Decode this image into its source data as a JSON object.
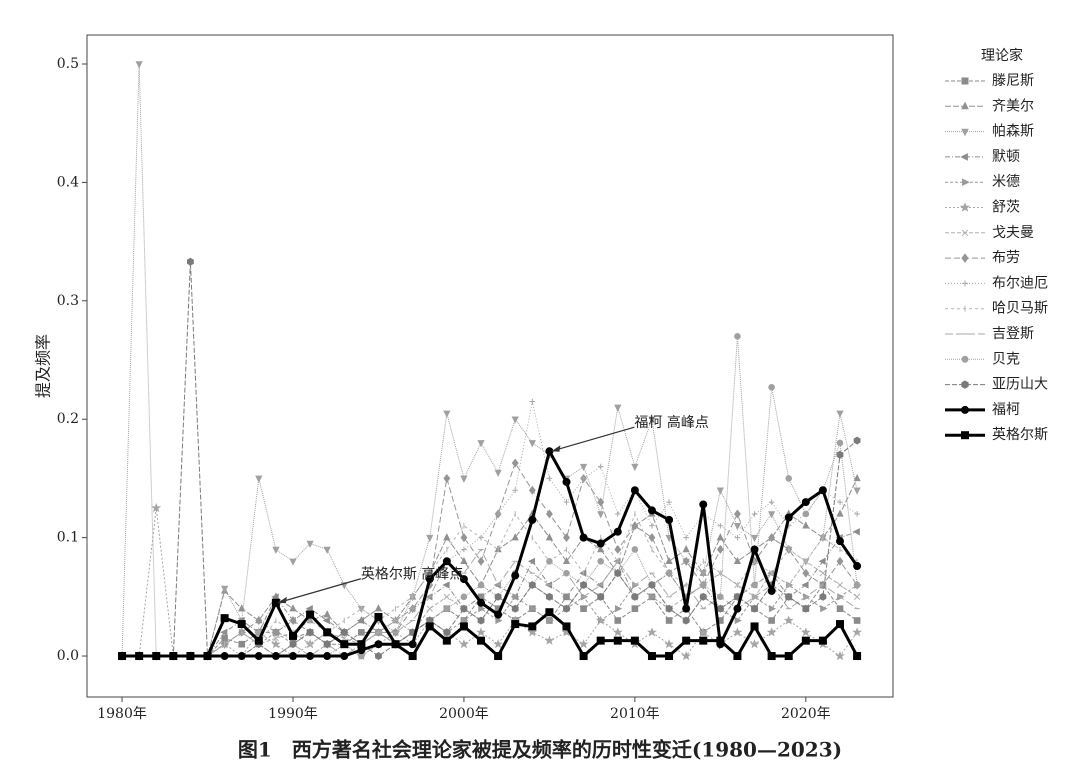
{
  "chart_data": {
    "type": "line",
    "caption": "图1　西方著名社会理论家被提及频率的历时性变迁(1980—2023)",
    "ylabel": "提及频率",
    "legend_title": "理论家",
    "legend": "outside right",
    "x": [
      1980,
      1981,
      1982,
      1983,
      1984,
      1985,
      1986,
      1987,
      1988,
      1989,
      1990,
      1991,
      1992,
      1993,
      1994,
      1995,
      1996,
      1997,
      1998,
      1999,
      2000,
      2001,
      2002,
      2003,
      2004,
      2005,
      2006,
      2007,
      2008,
      2009,
      2010,
      2011,
      2012,
      2013,
      2014,
      2015,
      2016,
      2017,
      2018,
      2019,
      2020,
      2021,
      2022,
      2023
    ],
    "xlim": [
      1977.95,
      2025.1
    ],
    "xticks": [
      {
        "value": 1980,
        "label": "1980年"
      },
      {
        "value": 1990,
        "label": "1990年"
      },
      {
        "value": 2000,
        "label": "2000年"
      },
      {
        "value": 2010,
        "label": "2010年"
      },
      {
        "value": 2020,
        "label": "2020年"
      }
    ],
    "ylim": [
      -0.0346,
      0.5245
    ],
    "yticks": [
      {
        "value": 0,
        "label": "0.0"
      },
      0.1,
      0.2,
      0.3,
      0.4,
      0.5
    ],
    "annotations": [
      {
        "text": "福柯 高峰点",
        "x": 2005,
        "y": 0.173
      },
      {
        "text": "英格尔斯 高峰点",
        "x": 1989,
        "y": 0.045
      }
    ],
    "series": [
      {
        "name": "滕尼斯",
        "color": "#8a8a8a",
        "marker": "square",
        "dash": "4 2",
        "width": 1,
        "values": [
          0,
          0,
          0,
          0,
          0,
          0,
          0.015,
          0.01,
          0.02,
          0.02,
          0.015,
          0.02,
          0.01,
          0.01,
          0.02,
          0.02,
          0.01,
          0.02,
          0.03,
          0.04,
          0.03,
          0.05,
          0.04,
          0.03,
          0.04,
          0.03,
          0.05,
          0.04,
          0.05,
          0.03,
          0.04,
          0.05,
          0.03,
          0.04,
          0.02,
          0.03,
          0.05,
          0.04,
          0.03,
          0.05,
          0.04,
          0.06,
          0.04,
          0.03
        ]
      },
      {
        "name": "齐美尔",
        "color": "#909090",
        "marker": "triangle-up",
        "dash": "6 2",
        "width": 1,
        "values": [
          0,
          0,
          0,
          0,
          0,
          0,
          0.055,
          0.04,
          0.03,
          0.05,
          0.04,
          0.03,
          0.035,
          0.02,
          0.03,
          0.04,
          0.03,
          0.05,
          0.07,
          0.1,
          0.08,
          0.06,
          0.09,
          0.1,
          0.12,
          0.1,
          0.08,
          0.1,
          0.09,
          0.07,
          0.11,
          0.12,
          0.08,
          0.09,
          0.07,
          0.1,
          0.08,
          0.09,
          0.1,
          0.12,
          0.11,
          0.1,
          0.12,
          0.15
        ]
      },
      {
        "name": "帕森斯",
        "color": "#a0a0a0",
        "marker": "triangle-down",
        "dash": "1 1",
        "width": 1,
        "values": [
          0,
          0.5,
          0,
          0,
          0,
          0,
          0.057,
          0.03,
          0.15,
          0.09,
          0.08,
          0.095,
          0.09,
          0.06,
          0.04,
          0.03,
          0.02,
          0.05,
          0.1,
          0.205,
          0.15,
          0.18,
          0.155,
          0.2,
          0.18,
          0.17,
          0.15,
          0.16,
          0.12,
          0.21,
          0.16,
          0.2,
          0.1,
          0.08,
          0.07,
          0.14,
          0.11,
          0.1,
          0.12,
          0.09,
          0.08,
          0.1,
          0.205,
          0.14
        ]
      },
      {
        "name": "默顿",
        "color": "#8c8c8c",
        "marker": "triangle-left",
        "dash": "5 2 1 2",
        "width": 1,
        "values": [
          0,
          0,
          0,
          0,
          0,
          0,
          0.02,
          0.03,
          0.02,
          0.05,
          0.03,
          0.04,
          0.03,
          0.02,
          0.03,
          0.02,
          0.03,
          0.04,
          0.05,
          0.06,
          0.04,
          0.05,
          0.06,
          0.05,
          0.08,
          0.06,
          0.05,
          0.07,
          0.06,
          0.08,
          0.05,
          0.06,
          0.07,
          0.05,
          0.06,
          0.04,
          0.05,
          0.06,
          0.07,
          0.05,
          0.06,
          0.08,
          0.1,
          0.105
        ]
      },
      {
        "name": "米德",
        "color": "#999999",
        "marker": "triangle-right",
        "dash": "3 2",
        "width": 1,
        "values": [
          0,
          0,
          0,
          0,
          0,
          0,
          0.01,
          0.02,
          0.01,
          0.02,
          0.01,
          0.02,
          0.01,
          0.02,
          0.01,
          0.02,
          0.01,
          0.02,
          0.03,
          0.02,
          0.03,
          0.04,
          0.03,
          0.05,
          0.04,
          0.03,
          0.04,
          0.05,
          0.03,
          0.04,
          0.06,
          0.05,
          0.04,
          0.03,
          0.05,
          0.04,
          0.03,
          0.05,
          0.04,
          0.06,
          0.05,
          0.04,
          0.05,
          0.06
        ]
      },
      {
        "name": "舒茨",
        "color": "#a5a5a5",
        "marker": "star",
        "dash": "2 2",
        "width": 1,
        "values": [
          0,
          0,
          0.125,
          0,
          0,
          0,
          0.01,
          0,
          0.02,
          0.01,
          0,
          0.01,
          0.02,
          0.01,
          0,
          0.01,
          0.02,
          0.01,
          0.03,
          0.02,
          0.01,
          0.02,
          0.01,
          0.03,
          0.02,
          0.013,
          0.02,
          0.01,
          0.03,
          0.02,
          0.01,
          0.02,
          0.01,
          0,
          0.02,
          0.01,
          0.02,
          0.01,
          0.02,
          0.03,
          0.02,
          0.01,
          0,
          0.02
        ]
      },
      {
        "name": "戈夫曼",
        "color": "#b0b0b0",
        "marker": "cross",
        "dash": "4 2",
        "width": 1,
        "values": [
          0,
          0,
          0,
          0,
          0,
          0,
          0.01,
          0.02,
          0.01,
          0.015,
          0.02,
          0.01,
          0.02,
          0.015,
          0.01,
          0.02,
          0.03,
          0.02,
          0.04,
          0.05,
          0.04,
          0.03,
          0.05,
          0.04,
          0.06,
          0.05,
          0.04,
          0.06,
          0.05,
          0.07,
          0.05,
          0.06,
          0.04,
          0.05,
          0.06,
          0.07,
          0.06,
          0.05,
          0.07,
          0.06,
          0.08,
          0.07,
          0.06,
          0.05
        ]
      },
      {
        "name": "布劳",
        "color": "#959595",
        "marker": "diamond",
        "dash": "6 3",
        "width": 1,
        "values": [
          0,
          0,
          0,
          0,
          0,
          0,
          0.01,
          0.02,
          0.03,
          0.02,
          0.03,
          0.02,
          0.01,
          0.02,
          0.01,
          0.02,
          0.02,
          0.04,
          0.06,
          0.15,
          0.1,
          0.08,
          0.12,
          0.163,
          0.14,
          0.12,
          0.1,
          0.15,
          0.13,
          0.09,
          0.11,
          0.1,
          0.07,
          0.08,
          0.06,
          0.09,
          0.12,
          0.08,
          0.1,
          0.09,
          0.07,
          0.06,
          0.08,
          0.06
        ]
      },
      {
        "name": "布尔迪厄",
        "color": "#a8a8a8",
        "marker": "plus",
        "dash": "1 2",
        "width": 1,
        "values": [
          0,
          0,
          0,
          0,
          0,
          0,
          0,
          0,
          0.01,
          0,
          0.01,
          0,
          0.01,
          0.02,
          0.01,
          0.02,
          0.03,
          0.04,
          0.06,
          0.08,
          0.09,
          0.1,
          0.12,
          0.14,
          0.215,
          0.15,
          0.13,
          0.15,
          0.16,
          0.12,
          0.14,
          0.11,
          0.13,
          0.1,
          0.12,
          0.11,
          0.1,
          0.12,
          0.13,
          0.11,
          0.12,
          0.14,
          0.13,
          0.12
        ]
      },
      {
        "name": "哈贝马斯",
        "color": "#b5b5b5",
        "marker": "vline",
        "dash": "3 3",
        "width": 1,
        "values": [
          0,
          0,
          0,
          0,
          0,
          0,
          0.01,
          0.02,
          0.01,
          0.03,
          0.02,
          0.03,
          0.02,
          0.03,
          0.04,
          0.03,
          0.04,
          0.05,
          0.07,
          0.09,
          0.11,
          0.1,
          0.09,
          0.12,
          0.1,
          0.08,
          0.09,
          0.07,
          0.1,
          0.08,
          0.12,
          0.09,
          0.07,
          0.06,
          0.08,
          0.07,
          0.06,
          0.08,
          0.07,
          0.09,
          0.08,
          0.1,
          0.09,
          0.08
        ]
      },
      {
        "name": "吉登斯",
        "color": "#aaaaaa",
        "marker": "hline",
        "dash": "8 3",
        "width": 1,
        "values": [
          0,
          0,
          0,
          0,
          0,
          0,
          0,
          0,
          0,
          0,
          0.01,
          0,
          0.01,
          0,
          0.01,
          0.02,
          0.02,
          0.03,
          0.05,
          0.08,
          0.07,
          0.09,
          0.06,
          0.08,
          0.07,
          0.06,
          0.07,
          0.05,
          0.06,
          0.08,
          0.06,
          0.07,
          0.05,
          0.06,
          0.04,
          0.05,
          0.04,
          0.05,
          0.06,
          0.04,
          0.05,
          0.06,
          0.05,
          0.04
        ]
      },
      {
        "name": "贝克",
        "color": "#a0a0a0",
        "marker": "circle",
        "dash": "1 1",
        "width": 1,
        "values": [
          0,
          0,
          0,
          0,
          0,
          0,
          0,
          0,
          0,
          0,
          0,
          0,
          0,
          0.01,
          0,
          0.01,
          0.01,
          0.02,
          0.03,
          0.04,
          0.05,
          0.06,
          0.05,
          0.07,
          0.06,
          0.08,
          0.07,
          0.06,
          0.08,
          0.07,
          0.09,
          0.06,
          0.07,
          0.05,
          0.06,
          0.05,
          0.27,
          0.06,
          0.227,
          0.15,
          0.12,
          0.14,
          0.18,
          0.06
        ]
      },
      {
        "name": "亚历山大",
        "color": "#7a7a7a",
        "marker": "hexagon",
        "dash": "5 2",
        "width": 1,
        "values": [
          0,
          0,
          0,
          0,
          0.333,
          0,
          0,
          0,
          0.01,
          0,
          0.01,
          0.02,
          0.01,
          0.02,
          0.01,
          0,
          0.01,
          0.02,
          0.03,
          0.02,
          0.04,
          0.03,
          0.05,
          0.04,
          0.06,
          0.05,
          0.04,
          0.06,
          0.05,
          0.07,
          0.05,
          0.06,
          0.04,
          0.03,
          0.05,
          0.04,
          0.05,
          0.04,
          0.06,
          0.05,
          0.04,
          0.05,
          0.17,
          0.182
        ]
      },
      {
        "name": "福柯",
        "color": "#000000",
        "marker": "circle",
        "dash": "none",
        "width": 3,
        "values": [
          0,
          0,
          0,
          0,
          0,
          0,
          0,
          0,
          0,
          0,
          0,
          0,
          0,
          0,
          0.005,
          0.01,
          0.01,
          0.01,
          0.065,
          0.08,
          0.065,
          0.045,
          0.035,
          0.068,
          0.115,
          0.173,
          0.147,
          0.1,
          0.095,
          0.105,
          0.14,
          0.123,
          0.115,
          0.04,
          0.128,
          0.01,
          0.04,
          0.09,
          0.055,
          0.117,
          0.13,
          0.14,
          0.097,
          0.076
        ]
      },
      {
        "name": "英格尔斯",
        "color": "#000000",
        "marker": "square",
        "dash": "none",
        "width": 3,
        "values": [
          0,
          0,
          0,
          0,
          0,
          0,
          0.032,
          0.027,
          0.013,
          0.045,
          0.017,
          0.035,
          0.02,
          0.01,
          0.01,
          0.033,
          0.01,
          0,
          0.025,
          0.013,
          0.025,
          0.013,
          0,
          0.027,
          0.025,
          0.037,
          0.025,
          0,
          0.013,
          0.013,
          0.013,
          0,
          0,
          0.013,
          0.013,
          0.013,
          0,
          0.025,
          0,
          0,
          0.013,
          0.013,
          0.027,
          0
        ]
      }
    ]
  }
}
